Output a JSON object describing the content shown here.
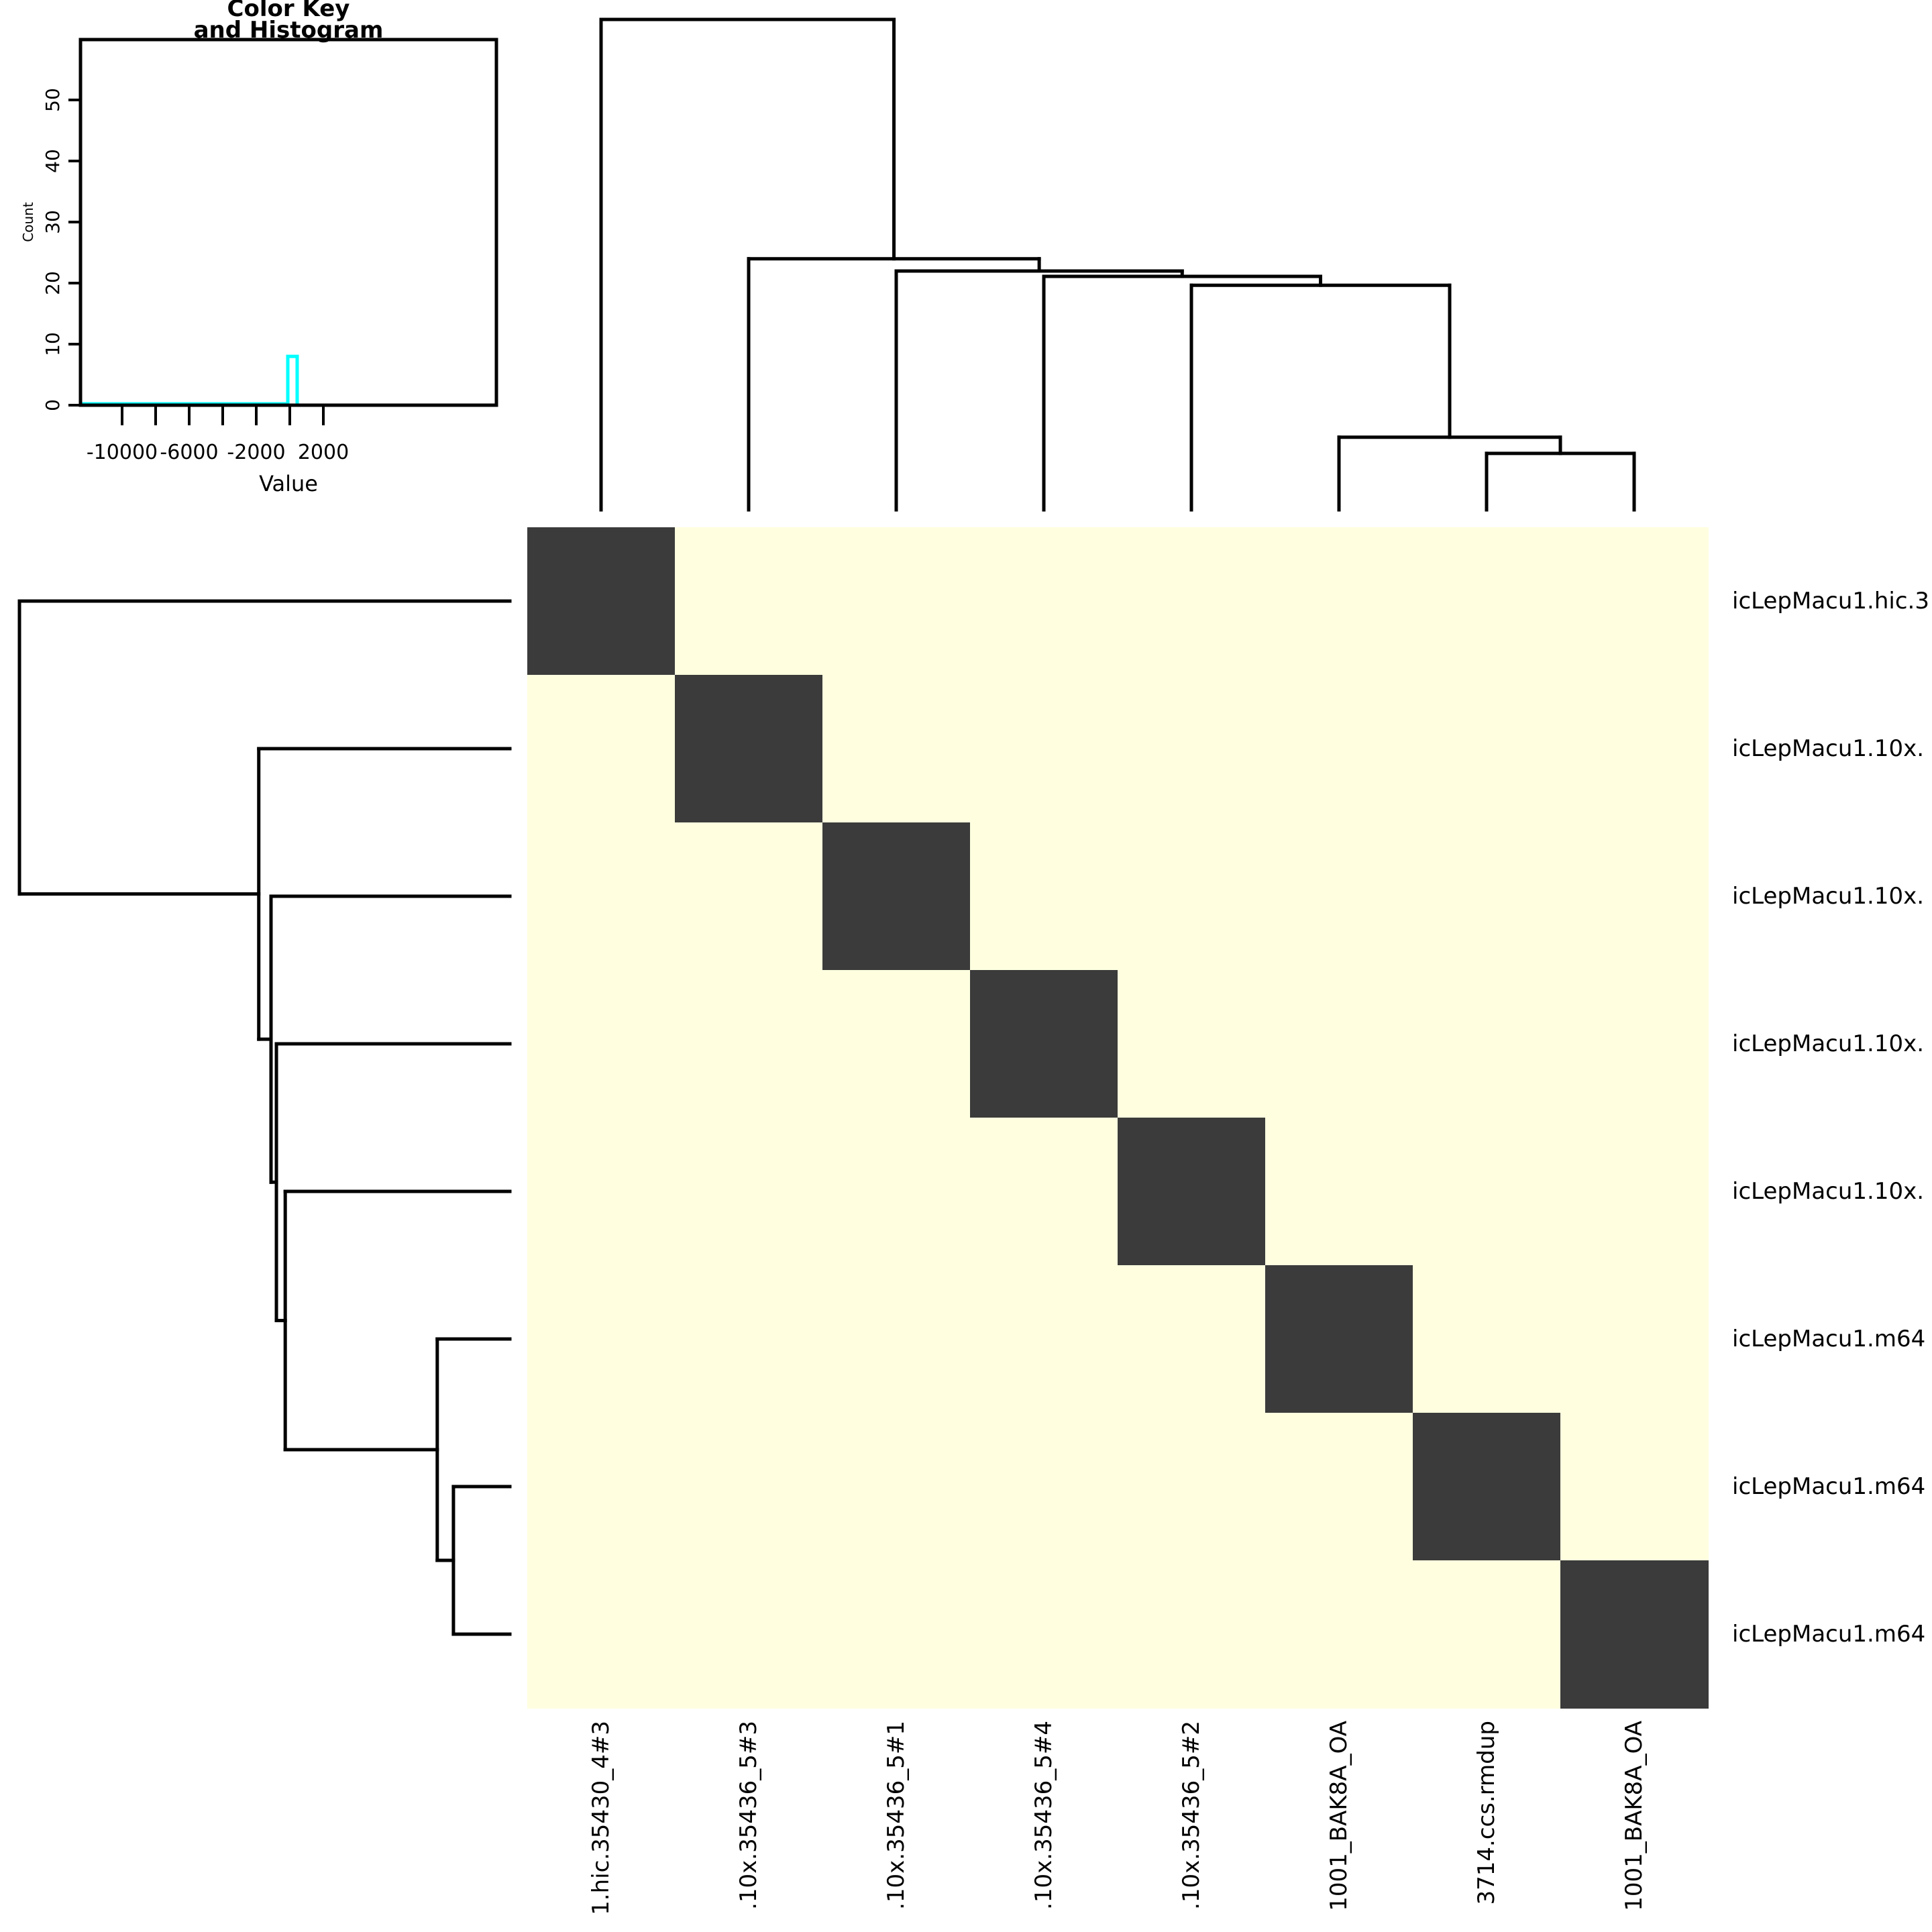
{
  "style": {
    "background": "#FFFFFF",
    "line_color": "#000000",
    "diagonal_cell_color": "#3B3B3B",
    "off_diagonal_cell_color": "#FFFFE0",
    "trace_color": "#00FFFF"
  },
  "chart_data": {
    "type": "heatmap",
    "description": "Clustered sample-correlation heatmap (heatmap.2 style) with row and column dendrograms and a color-key histogram. Diagonal cells are dark (value 0), all off-diagonal cells are light yellow.",
    "rows": [
      "icLepMacu1.hic.3",
      "icLepMacu1.10x.",
      "icLepMacu1.10x.",
      "icLepMacu1.10x.",
      "icLepMacu1.10x.",
      "icLepMacu1.m64",
      "icLepMacu1.m64",
      "icLepMacu1.m64"
    ],
    "cols": [
      "1.hic.35430_4#3",
      ".10x.35436_5#3",
      ".10x.35436_5#1",
      ".10x.35436_5#4",
      ".10x.35436_5#2",
      "1001_BAK8A_OA",
      "3714.ccs.rmdup",
      "1001_BAK8A_OA"
    ],
    "matrix": [
      [
        0,
        1,
        1,
        1,
        1,
        1,
        1,
        1
      ],
      [
        1,
        0,
        1,
        1,
        1,
        1,
        1,
        1
      ],
      [
        1,
        1,
        0,
        1,
        1,
        1,
        1,
        1
      ],
      [
        1,
        1,
        1,
        0,
        1,
        1,
        1,
        1
      ],
      [
        1,
        1,
        1,
        1,
        0,
        1,
        1,
        1
      ],
      [
        1,
        1,
        1,
        1,
        1,
        0,
        1,
        1
      ],
      [
        1,
        1,
        1,
        1,
        1,
        1,
        0,
        1
      ],
      [
        1,
        1,
        1,
        1,
        1,
        1,
        1,
        0
      ]
    ],
    "value_colors": {
      "0": "#3B3B3B",
      "1": "#FFFFE0"
    },
    "legend_note": "0 = diagonal (dark, self comparison, value 0), 1 = off-diagonal (light yellow)",
    "col_dendrogram": {
      "h": 1.0,
      "left": {
        "leaf": 0
      },
      "right": {
        "h": 0.512,
        "left": {
          "leaf": 1
        },
        "right": {
          "h": 0.487,
          "left": {
            "leaf": 2
          },
          "right": {
            "h": 0.476,
            "left": {
              "leaf": 3
            },
            "right": {
              "h": 0.458,
              "left": {
                "leaf": 4
              },
              "right": {
                "h": 0.148,
                "left": {
                  "leaf": 5
                },
                "right": {
                  "h": 0.115,
                  "left": {
                    "leaf": 6
                  },
                  "right": {
                    "leaf": 7
                  }
                }
              }
            }
          }
        }
      }
    },
    "row_dendrogram_same_as_col": true,
    "color_key_histogram": {
      "title_line1": "Color Key",
      "title_line2": "and Histogram",
      "xlabel": "Value",
      "ylabel": "Count",
      "x_ticks": [
        -10000,
        -8000,
        -6000,
        -4000,
        -2000,
        0,
        2000
      ],
      "x_tick_labels": [
        "-10000",
        "-6000",
        "-2000",
        "2000"
      ],
      "y_ticks": [
        0,
        10,
        20,
        30,
        40,
        50
      ],
      "y_tick_labels": [
        "0",
        "10",
        "20",
        "30",
        "40",
        "50"
      ],
      "spike_value": 0,
      "spike_count": 8,
      "baseline_count": 0
    }
  }
}
